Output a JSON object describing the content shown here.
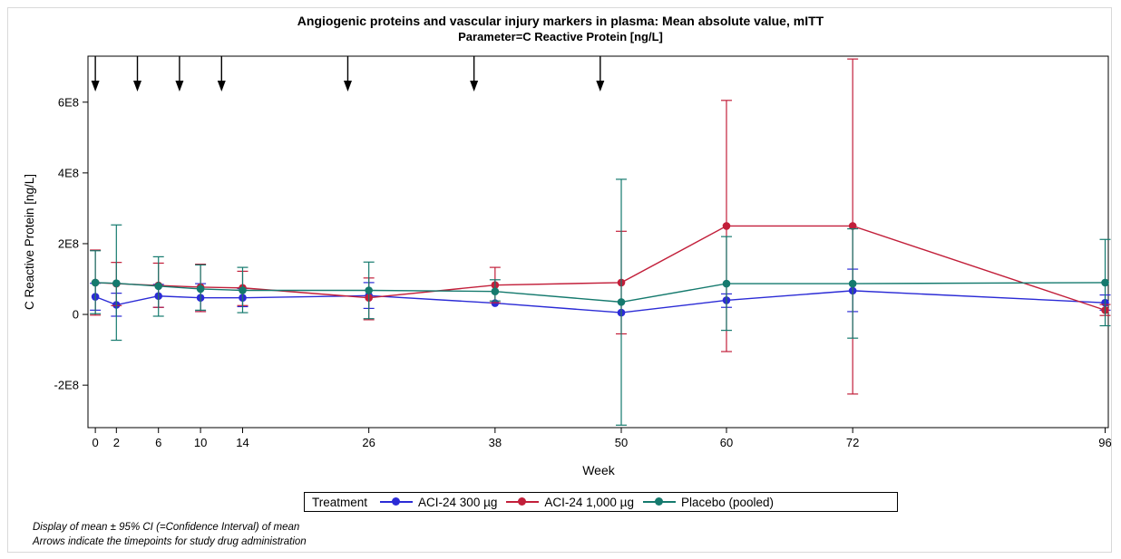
{
  "chart_data": {
    "type": "line",
    "title": "Angiogenic proteins and vascular injury markers in plasma: Mean absolute value, mITT",
    "subtitle": "Parameter=C Reactive Protein [ng/L]",
    "xlabel": "Week",
    "ylabel": "C Reactive Protein [ng/L]",
    "x_ticks": [
      0,
      2,
      6,
      10,
      14,
      26,
      38,
      50,
      60,
      72,
      96
    ],
    "x_tick_labels": [
      "0",
      "2",
      "6",
      "10",
      "14",
      "26",
      "38",
      "50",
      "60",
      "72",
      "96"
    ],
    "y_ticks": [
      -200000000,
      0,
      200000000,
      400000000,
      600000000
    ],
    "y_tick_labels": [
      "-2E8",
      "0",
      "2E8",
      "4E8",
      "6E8"
    ],
    "xlim": [
      -0.7,
      96.3
    ],
    "ylim": [
      -320000000,
      730000000
    ],
    "grid": false,
    "legend_title": "Treatment",
    "legend_position": "bottom",
    "arrow_weeks": [
      0,
      4,
      8,
      12,
      24,
      36,
      48
    ],
    "series": [
      {
        "name": "ACI-24 300 µg",
        "color": "#2b2bd6",
        "x": [
          0,
          2,
          6,
          10,
          14,
          26,
          38,
          50,
          60,
          72,
          96
        ],
        "y": [
          50000000,
          27000000,
          52000000,
          47000000,
          47000000,
          53000000,
          32000000,
          5000000,
          40000000,
          67000000,
          33000000
        ],
        "ci_low": [
          12000000,
          -5000000,
          20000000,
          8000000,
          22000000,
          17000000,
          null,
          null,
          20000000,
          8000000,
          12000000
        ],
        "ci_high": [
          88000000,
          60000000,
          85000000,
          87000000,
          73000000,
          90000000,
          null,
          null,
          58000000,
          128000000,
          55000000
        ]
      },
      {
        "name": "ACI-24 1,000 µg",
        "color": "#c21f3a",
        "x": [
          0,
          2,
          6,
          10,
          14,
          26,
          38,
          50,
          60,
          72,
          96
        ],
        "y": [
          90000000,
          87000000,
          82000000,
          77000000,
          75000000,
          47000000,
          83000000,
          90000000,
          250000000,
          250000000,
          12000000
        ],
        "ci_low": [
          -2000000,
          25000000,
          20000000,
          8000000,
          25000000,
          -15000000,
          33000000,
          -55000000,
          -105000000,
          -225000000,
          -3000000
        ],
        "ci_high": [
          182000000,
          147000000,
          145000000,
          142000000,
          122000000,
          103000000,
          133000000,
          235000000,
          605000000,
          722000000,
          28000000
        ]
      },
      {
        "name": "Placebo (pooled)",
        "color": "#157a6e",
        "x": [
          0,
          2,
          6,
          10,
          14,
          26,
          38,
          50,
          60,
          72,
          96
        ],
        "y": [
          90000000,
          88000000,
          80000000,
          72000000,
          68000000,
          68000000,
          65000000,
          35000000,
          87000000,
          87000000,
          90000000
        ],
        "ci_low": [
          2000000,
          -73000000,
          -5000000,
          12000000,
          5000000,
          -12000000,
          38000000,
          -313000000,
          -45000000,
          -67000000,
          -32000000
        ],
        "ci_high": [
          180000000,
          253000000,
          163000000,
          140000000,
          133000000,
          148000000,
          98000000,
          382000000,
          220000000,
          242000000,
          212000000
        ]
      }
    ]
  },
  "footnotes": {
    "line1": "Display of mean ± 95% CI (=Confidence Interval) of mean",
    "line2": "Arrows indicate the timepoints for study drug administration"
  }
}
